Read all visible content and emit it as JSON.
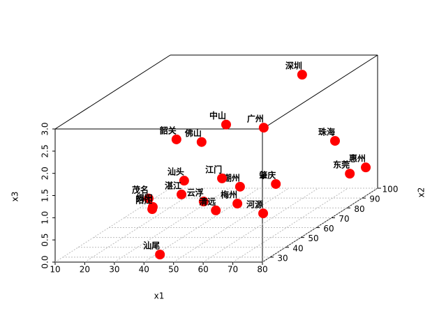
{
  "chart_data": {
    "type": "scatter3d",
    "x_label": "x1",
    "y_label": "x2",
    "z_label": "x3",
    "labels": [
      "深圳",
      "广州",
      "中山",
      "佛山",
      "韶关",
      "珠海",
      "惠州",
      "东莞",
      "肇庆",
      "潮州",
      "江门",
      "汕头",
      "湛江",
      "茂名",
      "云浮",
      "揭阳",
      "阳江",
      "梅州",
      "清远",
      "河源",
      "汕尾"
    ],
    "x1": [
      59.7,
      57.1,
      44.4,
      43.9,
      38.0,
      73.4,
      78.6,
      75.8,
      58.6,
      49.1,
      48.2,
      40.6,
      39.7,
      33.8,
      44.6,
      35.2,
      35.0,
      50.8,
      48.7,
      59.5,
      42.8
    ],
    "x2": [
      90,
      70,
      70,
      55,
      50,
      85,
      95,
      90,
      75,
      70,
      60,
      50,
      50,
      40,
      55,
      40,
      40,
      65,
      55,
      65,
      30
    ],
    "x3": [
      2.78,
      2.03,
      2.1,
      2.04,
      2.21,
      1.4,
      0.58,
      0.55,
      0.65,
      0.7,
      1.11,
      1.28,
      0.97,
      1.1,
      0.7,
      0.91,
      0.86,
      0.43,
      0.5,
      0.21,
      0.06
    ],
    "color": "#ff0000",
    "x1lim": [
      10,
      80
    ],
    "x1ticks": [
      10,
      20,
      30,
      40,
      50,
      60,
      70,
      80
    ],
    "x2lim": [
      25,
      100
    ],
    "x2ticks": [
      30,
      40,
      50,
      60,
      70,
      80,
      90,
      100
    ],
    "x3lim": [
      0,
      3
    ],
    "x3ticks": [
      {
        "value": 0,
        "label": "0.0"
      },
      0.5,
      {
        "value": 1,
        "label": "1.0"
      },
      1.5,
      {
        "value": 2,
        "label": "2.0"
      },
      2.5,
      {
        "value": 3,
        "label": "3.0"
      }
    ],
    "grid": true
  }
}
